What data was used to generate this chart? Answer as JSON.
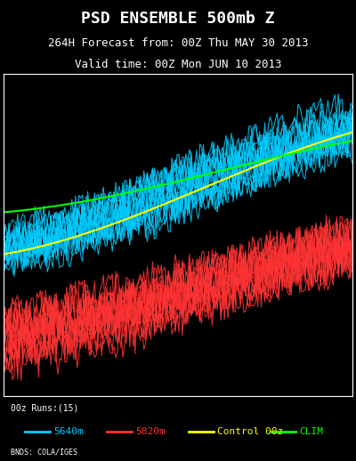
{
  "title_line1": "PSD ENSEMBLE 500mb Z",
  "title_line2": "264H Forecast from: 00Z Thu MAY 30 2013",
  "title_line3": "Valid time: 00Z Mon JUN 10 2013",
  "legend_label1": "5640m",
  "legend_label2": "5820m",
  "legend_label3": "Control 00z",
  "legend_label4": "CLIM",
  "legend_runs": "00z Runs:(15)",
  "color_5640": "#00CCFF",
  "color_5820": "#FF3333",
  "color_control": "#FFFF00",
  "color_clim": "#00FF00",
  "bg_color": "#000000",
  "map_bg": "#000000",
  "land_color": "#1a1a1a",
  "coast_color": "#FFFFFF",
  "title_color": "#FFFFFF",
  "credit": "BNDS: COLA/IGES",
  "figsize": [
    4.0,
    5.18
  ],
  "dpi": 100
}
